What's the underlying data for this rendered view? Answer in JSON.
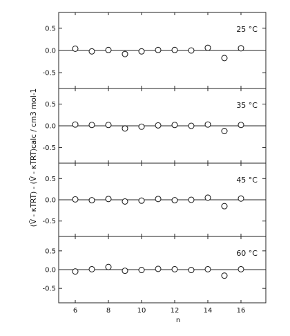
{
  "chart_data": {
    "type": "scatter",
    "xlabel": "n",
    "ylabel": "(V̄ - κTRT) - (V̄ - κTRT)calc / cm3 mol-1",
    "xticks": [
      6,
      8,
      10,
      12,
      14,
      16
    ],
    "xlim": [
      5,
      17.5
    ],
    "yticks": [
      "0.5",
      "0.0",
      "-0.5"
    ],
    "ylim": [
      -0.7,
      0.7
    ],
    "grid": false,
    "x": [
      6,
      7,
      8,
      9,
      10,
      11,
      12,
      13,
      14,
      15,
      16
    ],
    "panels": [
      {
        "label": "25 °C",
        "values": [
          0.04,
          -0.02,
          0.01,
          -0.08,
          -0.02,
          0.01,
          0.01,
          0.0,
          0.06,
          -0.17,
          0.05
        ]
      },
      {
        "label": "35 °C",
        "values": [
          0.03,
          0.02,
          0.02,
          -0.06,
          -0.02,
          0.01,
          0.02,
          0.0,
          0.03,
          -0.12,
          0.02
        ]
      },
      {
        "label": "45 °C",
        "values": [
          0.01,
          -0.01,
          0.02,
          -0.04,
          -0.02,
          0.02,
          -0.01,
          0.0,
          0.05,
          -0.15,
          0.03
        ]
      },
      {
        "label": "60 °C",
        "values": [
          -0.05,
          0.01,
          0.07,
          -0.03,
          -0.01,
          0.02,
          0.01,
          -0.01,
          0.01,
          -0.16,
          0.01
        ]
      }
    ]
  }
}
